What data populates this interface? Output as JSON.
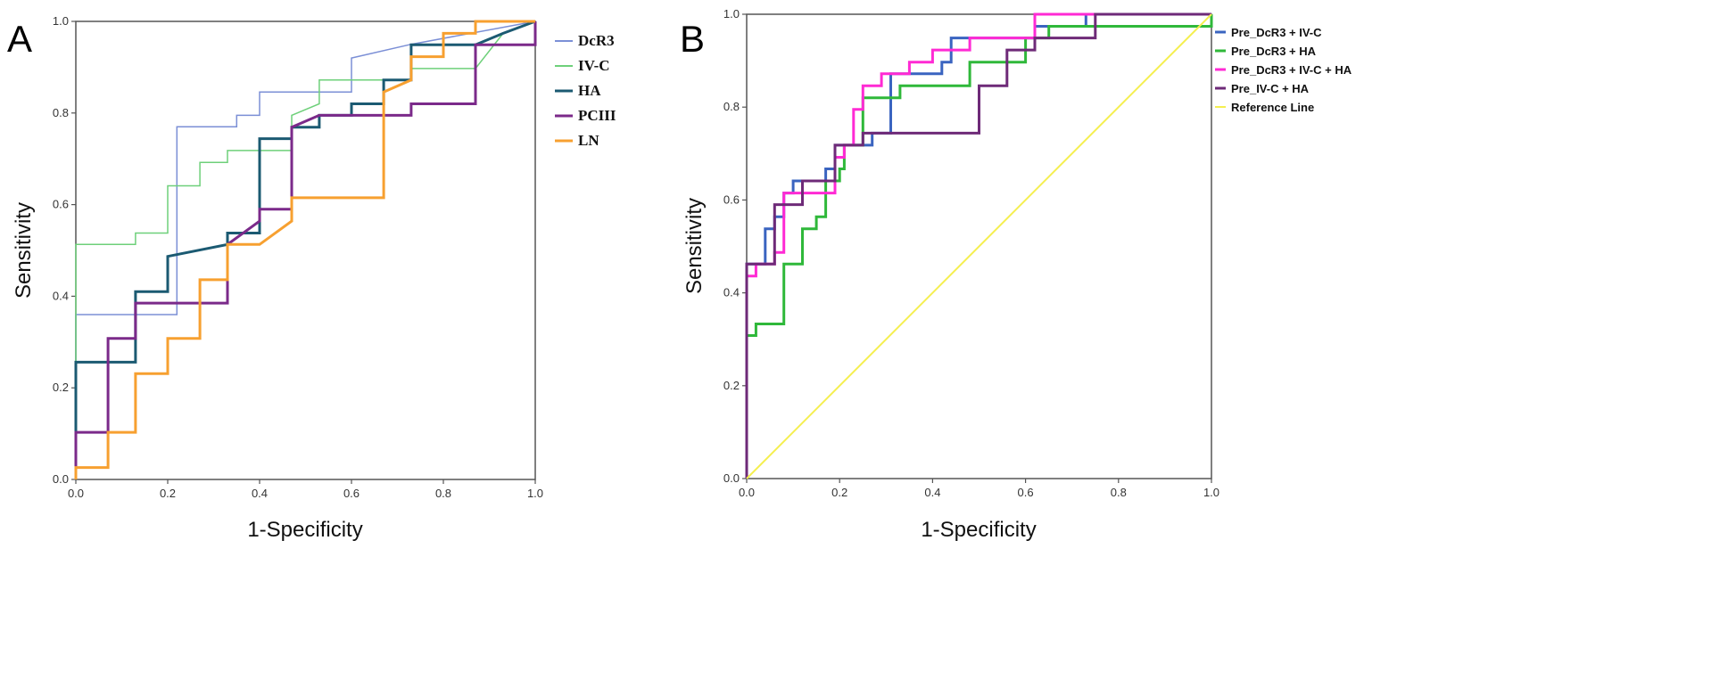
{
  "chart_data": [
    {
      "type": "line",
      "panel_label": "A",
      "title": "",
      "xlabel": "1-Specificity",
      "ylabel": "Sensitivity",
      "xlim": [
        0,
        1
      ],
      "ylim": [
        0,
        1
      ],
      "xticks": [
        "0.0",
        "0.2",
        "0.4",
        "0.6",
        "0.8",
        "1.0"
      ],
      "yticks": [
        "0.0",
        "0.2",
        "0.4",
        "0.6",
        "0.8",
        "1.0"
      ],
      "grid": false,
      "legend_position": "right",
      "series": [
        {
          "name": "DcR3",
          "color": "#7b8fd6",
          "width": 1.5,
          "points": [
            [
              0,
              0
            ],
            [
              0,
              0.36
            ],
            [
              0.22,
              0.36
            ],
            [
              0.22,
              0.77
            ],
            [
              0.35,
              0.77
            ],
            [
              0.35,
              0.795
            ],
            [
              0.4,
              0.795
            ],
            [
              0.4,
              0.846
            ],
            [
              0.6,
              0.846
            ],
            [
              0.6,
              0.92
            ],
            [
              0.73,
              0.95
            ],
            [
              1,
              1
            ]
          ]
        },
        {
          "name": "IV-C",
          "color": "#6ed07a",
          "width": 1.5,
          "points": [
            [
              0,
              0
            ],
            [
              0,
              0.513
            ],
            [
              0.13,
              0.513
            ],
            [
              0.13,
              0.538
            ],
            [
              0.2,
              0.538
            ],
            [
              0.2,
              0.641
            ],
            [
              0.27,
              0.641
            ],
            [
              0.27,
              0.692
            ],
            [
              0.33,
              0.692
            ],
            [
              0.33,
              0.718
            ],
            [
              0.47,
              0.718
            ],
            [
              0.47,
              0.795
            ],
            [
              0.53,
              0.82
            ],
            [
              0.53,
              0.872
            ],
            [
              0.73,
              0.872
            ],
            [
              0.73,
              0.897
            ],
            [
              0.87,
              0.897
            ],
            [
              0.93,
              0.974
            ],
            [
              1,
              1
            ]
          ]
        },
        {
          "name": "HA",
          "color": "#1b5a72",
          "width": 3,
          "points": [
            [
              0,
              0
            ],
            [
              0,
              0.256
            ],
            [
              0.13,
              0.256
            ],
            [
              0.13,
              0.41
            ],
            [
              0.2,
              0.41
            ],
            [
              0.2,
              0.487
            ],
            [
              0.33,
              0.513
            ],
            [
              0.33,
              0.538
            ],
            [
              0.4,
              0.538
            ],
            [
              0.4,
              0.744
            ],
            [
              0.47,
              0.744
            ],
            [
              0.47,
              0.769
            ],
            [
              0.53,
              0.769
            ],
            [
              0.53,
              0.795
            ],
            [
              0.6,
              0.795
            ],
            [
              0.6,
              0.82
            ],
            [
              0.67,
              0.82
            ],
            [
              0.67,
              0.872
            ],
            [
              0.73,
              0.872
            ],
            [
              0.73,
              0.949
            ],
            [
              0.87,
              0.949
            ],
            [
              0.93,
              0.974
            ],
            [
              1,
              1
            ]
          ]
        },
        {
          "name": "PCIII",
          "color": "#7b2a8a",
          "width": 3,
          "points": [
            [
              0,
              0
            ],
            [
              0,
              0.103
            ],
            [
              0.07,
              0.103
            ],
            [
              0.07,
              0.308
            ],
            [
              0.13,
              0.308
            ],
            [
              0.13,
              0.385
            ],
            [
              0.33,
              0.385
            ],
            [
              0.33,
              0.513
            ],
            [
              0.4,
              0.564
            ],
            [
              0.4,
              0.59
            ],
            [
              0.47,
              0.59
            ],
            [
              0.47,
              0.769
            ],
            [
              0.53,
              0.795
            ],
            [
              0.73,
              0.795
            ],
            [
              0.73,
              0.82
            ],
            [
              0.87,
              0.82
            ],
            [
              0.87,
              0.949
            ],
            [
              1,
              0.949
            ],
            [
              1,
              1
            ]
          ]
        },
        {
          "name": "LN",
          "color": "#f7a030",
          "width": 3,
          "points": [
            [
              0,
              0
            ],
            [
              0,
              0.026
            ],
            [
              0.07,
              0.026
            ],
            [
              0.07,
              0.103
            ],
            [
              0.13,
              0.103
            ],
            [
              0.13,
              0.231
            ],
            [
              0.2,
              0.231
            ],
            [
              0.2,
              0.308
            ],
            [
              0.27,
              0.308
            ],
            [
              0.27,
              0.436
            ],
            [
              0.33,
              0.436
            ],
            [
              0.33,
              0.513
            ],
            [
              0.4,
              0.513
            ],
            [
              0.47,
              0.564
            ],
            [
              0.47,
              0.615
            ],
            [
              0.67,
              0.615
            ],
            [
              0.67,
              0.846
            ],
            [
              0.73,
              0.872
            ],
            [
              0.73,
              0.923
            ],
            [
              0.8,
              0.923
            ],
            [
              0.8,
              0.974
            ],
            [
              0.87,
              0.974
            ],
            [
              0.87,
              1
            ],
            [
              1,
              1
            ]
          ]
        }
      ]
    },
    {
      "type": "line",
      "panel_label": "B",
      "title": "",
      "xlabel": "1-Specificity",
      "ylabel": "Sensitivity",
      "xlim": [
        0,
        1
      ],
      "ylim": [
        0,
        1
      ],
      "xticks": [
        "0.0",
        "0.2",
        "0.4",
        "0.6",
        "0.8",
        "1.0"
      ],
      "yticks": [
        "0.0",
        "0.2",
        "0.4",
        "0.6",
        "0.8",
        "1.0"
      ],
      "grid": false,
      "legend_position": "right",
      "series": [
        {
          "name": "Pre_DcR3 + IV-C",
          "color": "#3a64c0",
          "width": 3,
          "points": [
            [
              0,
              0
            ],
            [
              0,
              0.462
            ],
            [
              0.04,
              0.462
            ],
            [
              0.04,
              0.538
            ],
            [
              0.06,
              0.538
            ],
            [
              0.06,
              0.564
            ],
            [
              0.08,
              0.564
            ],
            [
              0.08,
              0.615
            ],
            [
              0.1,
              0.615
            ],
            [
              0.1,
              0.641
            ],
            [
              0.17,
              0.641
            ],
            [
              0.17,
              0.667
            ],
            [
              0.19,
              0.667
            ],
            [
              0.19,
              0.718
            ],
            [
              0.27,
              0.718
            ],
            [
              0.27,
              0.744
            ],
            [
              0.31,
              0.744
            ],
            [
              0.31,
              0.872
            ],
            [
              0.42,
              0.872
            ],
            [
              0.42,
              0.897
            ],
            [
              0.44,
              0.897
            ],
            [
              0.44,
              0.949
            ],
            [
              0.62,
              0.949
            ],
            [
              0.62,
              0.974
            ],
            [
              0.73,
              0.974
            ],
            [
              0.73,
              1
            ],
            [
              1,
              1
            ]
          ]
        },
        {
          "name": "Pre_DcR3 + HA",
          "color": "#2fb83a",
          "width": 3,
          "points": [
            [
              0,
              0
            ],
            [
              0,
              0.308
            ],
            [
              0.02,
              0.308
            ],
            [
              0.02,
              0.333
            ],
            [
              0.08,
              0.333
            ],
            [
              0.08,
              0.462
            ],
            [
              0.12,
              0.462
            ],
            [
              0.12,
              0.538
            ],
            [
              0.15,
              0.538
            ],
            [
              0.15,
              0.564
            ],
            [
              0.17,
              0.564
            ],
            [
              0.17,
              0.641
            ],
            [
              0.2,
              0.641
            ],
            [
              0.2,
              0.667
            ],
            [
              0.21,
              0.667
            ],
            [
              0.21,
              0.718
            ],
            [
              0.25,
              0.718
            ],
            [
              0.25,
              0.82
            ],
            [
              0.33,
              0.82
            ],
            [
              0.33,
              0.846
            ],
            [
              0.48,
              0.846
            ],
            [
              0.48,
              0.897
            ],
            [
              0.6,
              0.897
            ],
            [
              0.6,
              0.949
            ],
            [
              0.65,
              0.949
            ],
            [
              0.65,
              0.974
            ],
            [
              1,
              0.974
            ],
            [
              1,
              1
            ]
          ]
        },
        {
          "name": "Pre_DcR3 + IV-C + HA",
          "color": "#ff2ad4",
          "width": 3,
          "points": [
            [
              0,
              0
            ],
            [
              0,
              0.436
            ],
            [
              0.02,
              0.436
            ],
            [
              0.02,
              0.462
            ],
            [
              0.06,
              0.462
            ],
            [
              0.06,
              0.487
            ],
            [
              0.08,
              0.487
            ],
            [
              0.08,
              0.615
            ],
            [
              0.19,
              0.615
            ],
            [
              0.19,
              0.692
            ],
            [
              0.21,
              0.692
            ],
            [
              0.21,
              0.718
            ],
            [
              0.23,
              0.718
            ],
            [
              0.23,
              0.795
            ],
            [
              0.25,
              0.795
            ],
            [
              0.25,
              0.846
            ],
            [
              0.29,
              0.846
            ],
            [
              0.29,
              0.872
            ],
            [
              0.35,
              0.872
            ],
            [
              0.35,
              0.897
            ],
            [
              0.4,
              0.897
            ],
            [
              0.4,
              0.923
            ],
            [
              0.48,
              0.923
            ],
            [
              0.48,
              0.949
            ],
            [
              0.62,
              0.949
            ],
            [
              0.62,
              1
            ],
            [
              1,
              1
            ]
          ]
        },
        {
          "name": "Pre_IV-C + HA",
          "color": "#6e2a78",
          "width": 3,
          "points": [
            [
              0,
              0
            ],
            [
              0,
              0.462
            ],
            [
              0.06,
              0.462
            ],
            [
              0.06,
              0.59
            ],
            [
              0.12,
              0.59
            ],
            [
              0.12,
              0.641
            ],
            [
              0.19,
              0.641
            ],
            [
              0.19,
              0.718
            ],
            [
              0.25,
              0.718
            ],
            [
              0.25,
              0.744
            ],
            [
              0.5,
              0.744
            ],
            [
              0.5,
              0.846
            ],
            [
              0.56,
              0.846
            ],
            [
              0.56,
              0.923
            ],
            [
              0.62,
              0.923
            ],
            [
              0.62,
              0.949
            ],
            [
              0.75,
              0.949
            ],
            [
              0.75,
              1
            ],
            [
              1,
              1
            ]
          ]
        },
        {
          "name": "Reference Line",
          "color": "#f5ef50",
          "width": 2,
          "points": [
            [
              0,
              0
            ],
            [
              1,
              1
            ]
          ]
        }
      ]
    }
  ]
}
